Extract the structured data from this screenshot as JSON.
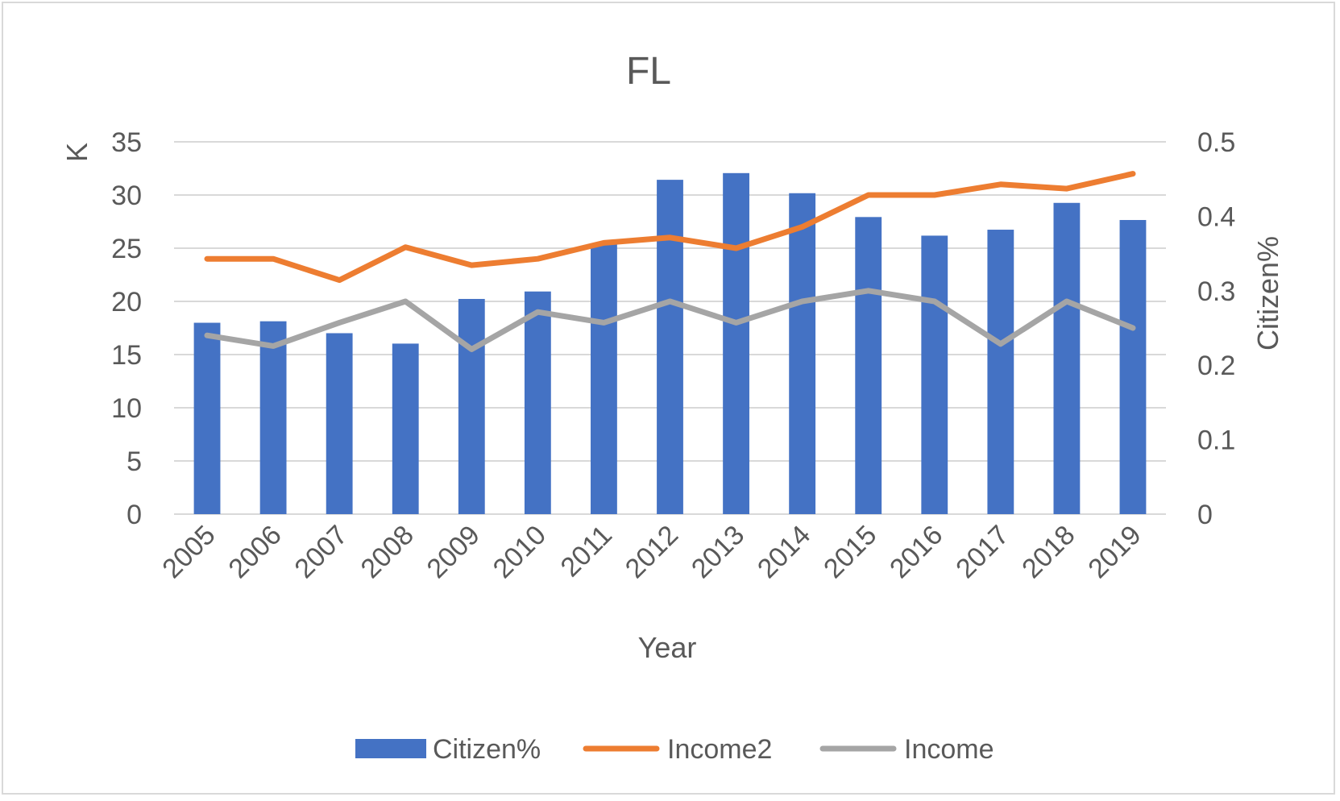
{
  "chart_data": {
    "type": "bar",
    "title": "FL",
    "xlabel": "Year",
    "ylabel": "K",
    "y2label": "Citizen%",
    "categories": [
      "2005",
      "2006",
      "2007",
      "2008",
      "2009",
      "2010",
      "2011",
      "2012",
      "2013",
      "2014",
      "2015",
      "2016",
      "2017",
      "2018",
      "2019"
    ],
    "ylim": [
      0,
      35
    ],
    "yticks": [
      "0",
      "5",
      "10",
      "15",
      "20",
      "25",
      "30",
      "35"
    ],
    "y2lim": [
      0,
      0.5
    ],
    "y2ticks": [
      "0",
      "0.1",
      "0.2",
      "0.3",
      "0.4",
      "0.5"
    ],
    "grid": true,
    "legend_position": "bottom",
    "series": [
      {
        "name": "Citizen%",
        "type": "bar",
        "axis": "right",
        "color": "#4472C4",
        "values": [
          0.257,
          0.259,
          0.243,
          0.229,
          0.289,
          0.299,
          0.363,
          0.449,
          0.458,
          0.431,
          0.399,
          0.374,
          0.382,
          0.418,
          0.395
        ]
      },
      {
        "name": "Income2",
        "type": "line",
        "axis": "left",
        "color": "#ED7D31",
        "values": [
          24,
          24,
          22,
          25.1,
          23.4,
          24,
          25.5,
          26,
          25,
          27,
          30,
          30,
          31,
          30.6,
          32
        ]
      },
      {
        "name": "Income",
        "type": "line",
        "axis": "left",
        "color": "#A5A5A5",
        "values": [
          16.8,
          15.8,
          18,
          20,
          15.5,
          19,
          18,
          20,
          18,
          20,
          21,
          20,
          16,
          20,
          17.5
        ]
      }
    ]
  }
}
